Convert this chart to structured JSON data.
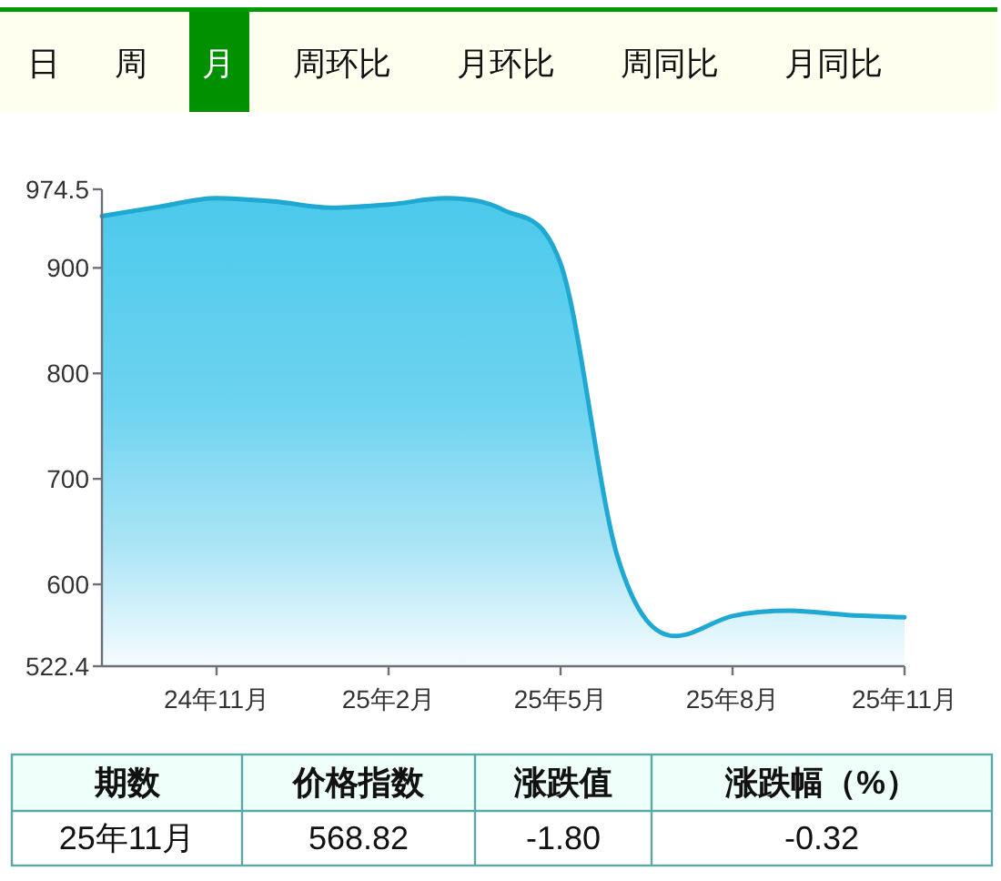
{
  "chart_data": {
    "type": "area",
    "categories": [
      null,
      null,
      "24年11月",
      null,
      null,
      "25年2月",
      null,
      null,
      "25年5月",
      null,
      null,
      "25年8月",
      null,
      null,
      "25年11月"
    ],
    "values": [
      949,
      958,
      966,
      963,
      957,
      960,
      966,
      955,
      904,
      625,
      551,
      570,
      575,
      571,
      568.82
    ],
    "color": "#1fa8d2",
    "ylim": [
      522.4,
      974.5
    ],
    "yticks": [
      522.4,
      600,
      700,
      800,
      900,
      974.5
    ],
    "annotations": [
      "日",
      "周",
      "月",
      "周环比",
      "月环比",
      "周同比",
      "月同比",
      "期数",
      "价格指数",
      "涨跌值",
      "涨跌幅（%）",
      "25年11月",
      "568.82",
      "-1.80",
      "-0.32"
    ]
  }
}
